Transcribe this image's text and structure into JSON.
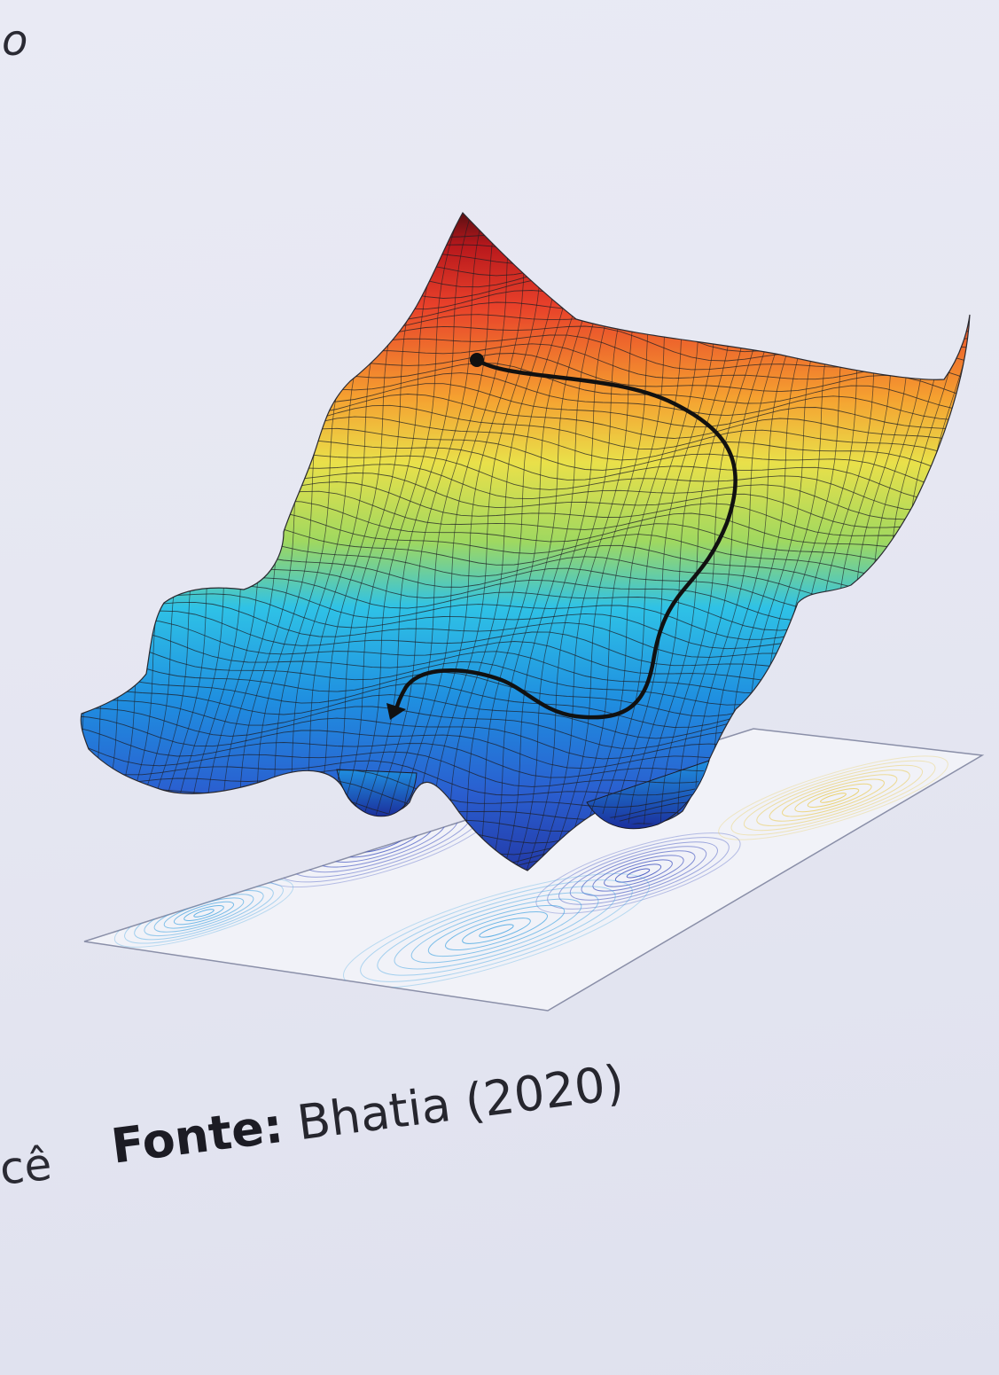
{
  "fragments": {
    "top_left": "o",
    "left_edge": "cê"
  },
  "caption": {
    "label": "Fonte:",
    "source": "Bhatia (2020)"
  },
  "figure": {
    "type": "3d-surface-with-contour",
    "colormap": [
      "#2a3fb8",
      "#1f8fe0",
      "#2fc2e6",
      "#7ed67a",
      "#e9e04a",
      "#f5a030",
      "#e8402a",
      "#7a1414"
    ],
    "path_color": "#111111"
  }
}
